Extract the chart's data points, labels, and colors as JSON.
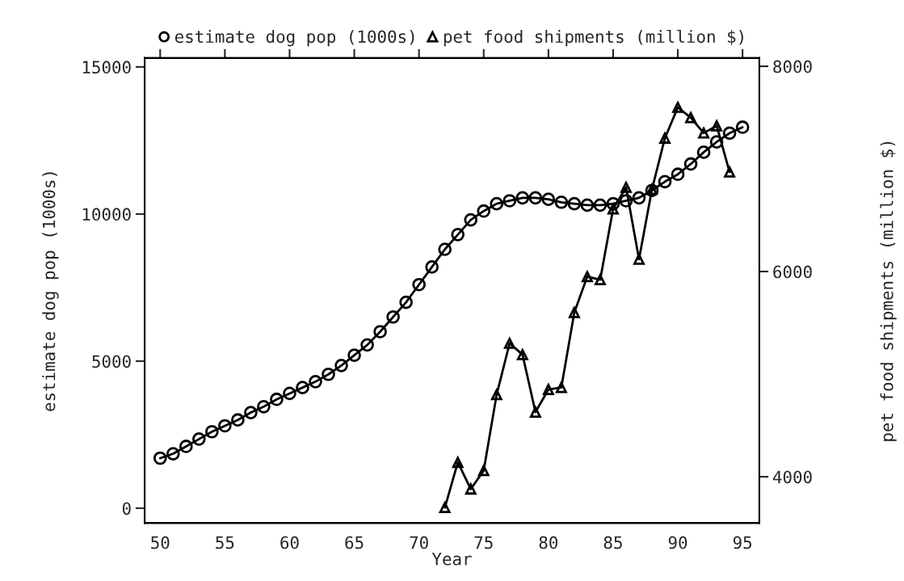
{
  "chart_data": {
    "type": "line",
    "xlabel": "Year",
    "ylabel": "estimate dog pop (1000s)",
    "y2label": "pet food shipments (million $)",
    "series": [
      {
        "name": "estimate dog pop (1000s)",
        "color": "#000000",
        "marker": "circle",
        "x": [
          50,
          51,
          52,
          53,
          54,
          55,
          56,
          57,
          58,
          59,
          60,
          61,
          62,
          63,
          64,
          65,
          66,
          67,
          68,
          69,
          70,
          71,
          72,
          73,
          74,
          75,
          76,
          77,
          78,
          79,
          80,
          81,
          82,
          83,
          84,
          85,
          86,
          87,
          88,
          89,
          90,
          91,
          92,
          93,
          94,
          95
        ],
        "values": [
          1700,
          1850,
          2100,
          2350,
          2600,
          2800,
          3000,
          3250,
          3450,
          3700,
          3900,
          4100,
          4300,
          4550,
          4850,
          5200,
          5550,
          6000,
          6500,
          7000,
          7600,
          8200,
          8800,
          9300,
          9800,
          10100,
          10350,
          10450,
          10550,
          10550,
          10500,
          10400,
          10350,
          10300,
          10300,
          10350,
          10450,
          10550,
          10800,
          11100,
          11350,
          11700,
          12100,
          12450,
          12750,
          12950
        ]
      },
      {
        "name": "pet food shipments (million $)",
        "color": "#000000",
        "marker": "triangle",
        "axis": "y2",
        "x": [
          72,
          73,
          74,
          75,
          76,
          77,
          78,
          79,
          80,
          81,
          82,
          83,
          84,
          85,
          86,
          87,
          88,
          89,
          90,
          91,
          92,
          93,
          94
        ],
        "values": [
          3700,
          4140,
          3880,
          4060,
          4800,
          5300,
          5190,
          4630,
          4850,
          4870,
          5600,
          5950,
          5920,
          6610,
          6820,
          6120,
          6800,
          7300,
          7600,
          7500,
          7350,
          7420,
          6970
        ]
      }
    ],
    "xlim": [
      48.8,
      96.3
    ],
    "xticks": [
      50,
      55,
      60,
      65,
      70,
      75,
      80,
      85,
      90,
      95
    ],
    "ylim": [
      -500,
      15300
    ],
    "yticks": [
      0,
      5000,
      10000,
      15000
    ],
    "y2lim": [
      3550,
      8080
    ],
    "y2ticks": [
      4000,
      6000,
      8000
    ],
    "grid": false,
    "legend": "top",
    "line_style": "solid"
  }
}
